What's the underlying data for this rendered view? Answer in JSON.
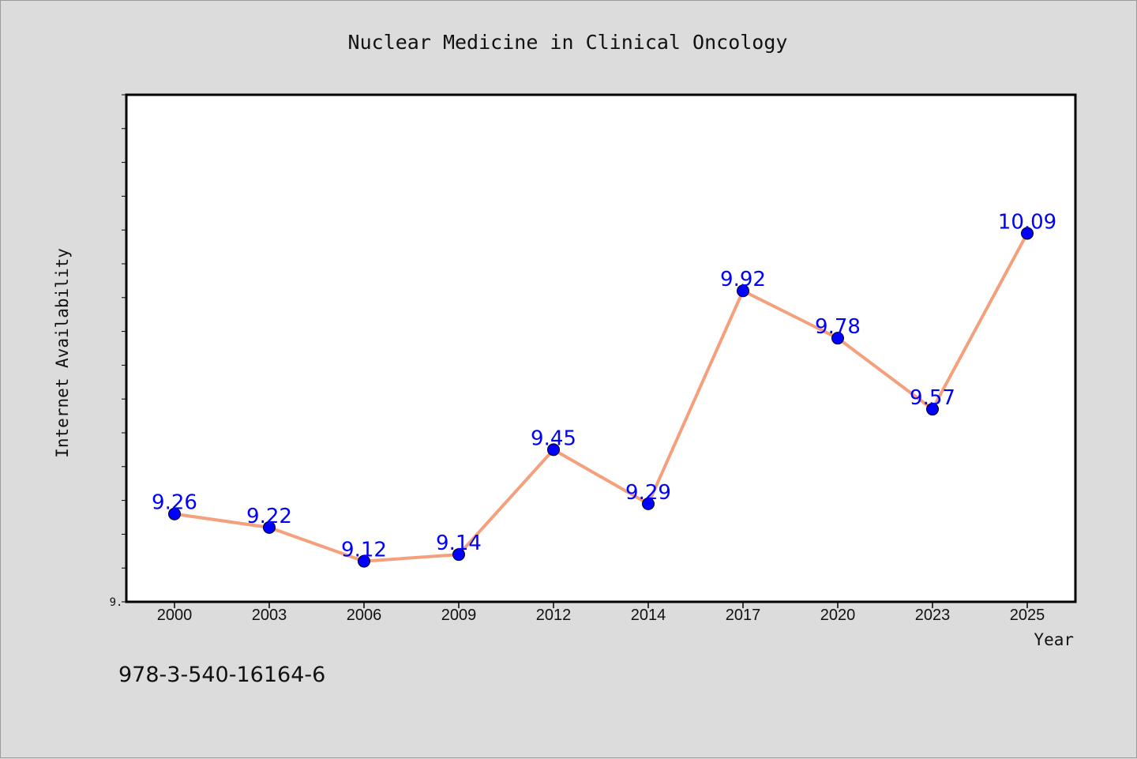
{
  "chart_data": {
    "type": "line",
    "title": "Nuclear Medicine in Clinical Oncology",
    "xlabel": "Year",
    "ylabel": "Internet Availability",
    "categories": [
      "2000",
      "2003",
      "2006",
      "2009",
      "2012",
      "2014",
      "2017",
      "2020",
      "2023",
      "2025"
    ],
    "values": [
      9.26,
      9.22,
      9.12,
      9.14,
      9.45,
      9.29,
      9.92,
      9.78,
      9.57,
      10.09
    ],
    "data_labels": [
      "9.26",
      "9.22",
      "9.12",
      "9.14",
      "9.45",
      "9.29",
      "9.92",
      "9.78",
      "9.57",
      "10.09"
    ],
    "ylim": [
      9.0,
      10.5
    ],
    "ytick_label": "9.",
    "grid": false,
    "line_color": "#f4a07c",
    "marker_color": "#0000ff",
    "label_color": "#0000ff"
  },
  "footer": {
    "isbn": "978-3-540-16164-6"
  }
}
